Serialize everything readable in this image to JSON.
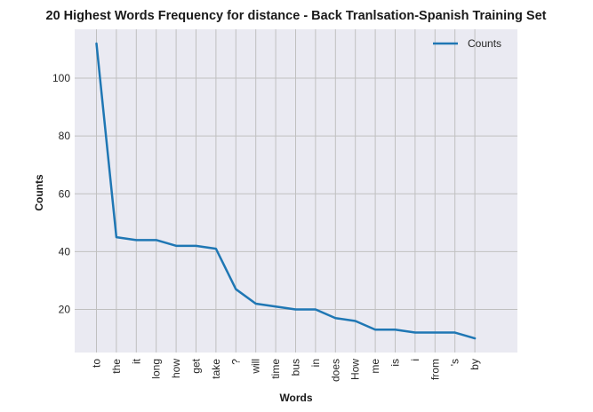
{
  "chart_data": {
    "type": "line",
    "title": "20 Highest Words Frequency for distance - Back Tranlsation-Spanish Training Set",
    "xlabel": "Words",
    "ylabel": "Counts",
    "categories": [
      "to",
      "the",
      "it",
      "long",
      "how",
      "get",
      "take",
      "?",
      "will",
      "time",
      "bus",
      "in",
      "does",
      "How",
      "me",
      "is",
      "i",
      "from",
      "'s",
      "by"
    ],
    "series": [
      {
        "name": "Counts",
        "color": "#1f77b4",
        "values": [
          112,
          45,
          44,
          44,
          42,
          42,
          41,
          27,
          22,
          21,
          20,
          20,
          17,
          16,
          13,
          13,
          12,
          12,
          12,
          10
        ]
      }
    ],
    "yticks": [
      20,
      40,
      60,
      80,
      100
    ],
    "ylim": [
      5.1,
      116.9
    ],
    "grid": true,
    "legend": "top-right",
    "colors": {
      "plot_background": "#eaeaf2",
      "grid": "#c0c0c0"
    }
  }
}
